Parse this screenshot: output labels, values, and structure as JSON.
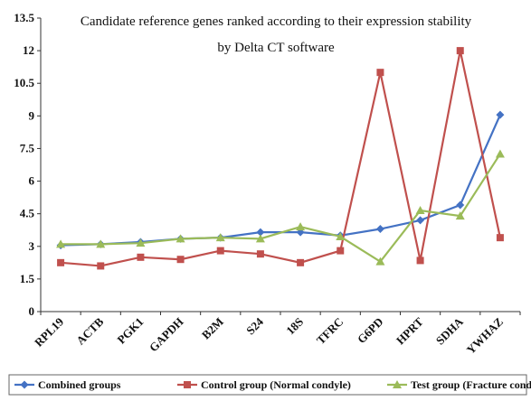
{
  "chart_data": {
    "type": "line",
    "title": "Candidate reference genes ranked according to their expression stability",
    "subtitle": "by Delta CT software",
    "xlabel": "",
    "ylabel": "",
    "ylim": [
      0,
      13.5
    ],
    "yticks": [
      "0",
      "1.5",
      "3",
      "4.5",
      "6",
      "7.5",
      "9",
      "10.5",
      "12",
      "13.5"
    ],
    "grid": false,
    "legend_position": "bottom",
    "categories": [
      "RPL19",
      "ACTB",
      "PGK1",
      "GAPDH",
      "B2M",
      "S24",
      "18S",
      "TFRC",
      "G6PD",
      "HPRT",
      "SDHA",
      "YWHAZ"
    ],
    "series": [
      {
        "name": "Combined groups",
        "color": "#4472c4",
        "marker": "diamond",
        "values": [
          3.05,
          3.1,
          3.2,
          3.35,
          3.4,
          3.65,
          3.65,
          3.5,
          3.8,
          4.2,
          4.9,
          9.05
        ]
      },
      {
        "name": "Control group (Normal condyle)",
        "color": "#c0504d",
        "marker": "square",
        "values": [
          2.25,
          2.1,
          2.5,
          2.4,
          2.8,
          2.65,
          2.25,
          2.8,
          11.0,
          2.35,
          12.0,
          3.4
        ]
      },
      {
        "name": "Test group (Fracture condyle)",
        "color": "#9bbb59",
        "marker": "triangle",
        "values": [
          3.1,
          3.1,
          3.15,
          3.35,
          3.4,
          3.35,
          3.9,
          3.45,
          2.3,
          4.65,
          4.4,
          7.25
        ]
      }
    ]
  }
}
